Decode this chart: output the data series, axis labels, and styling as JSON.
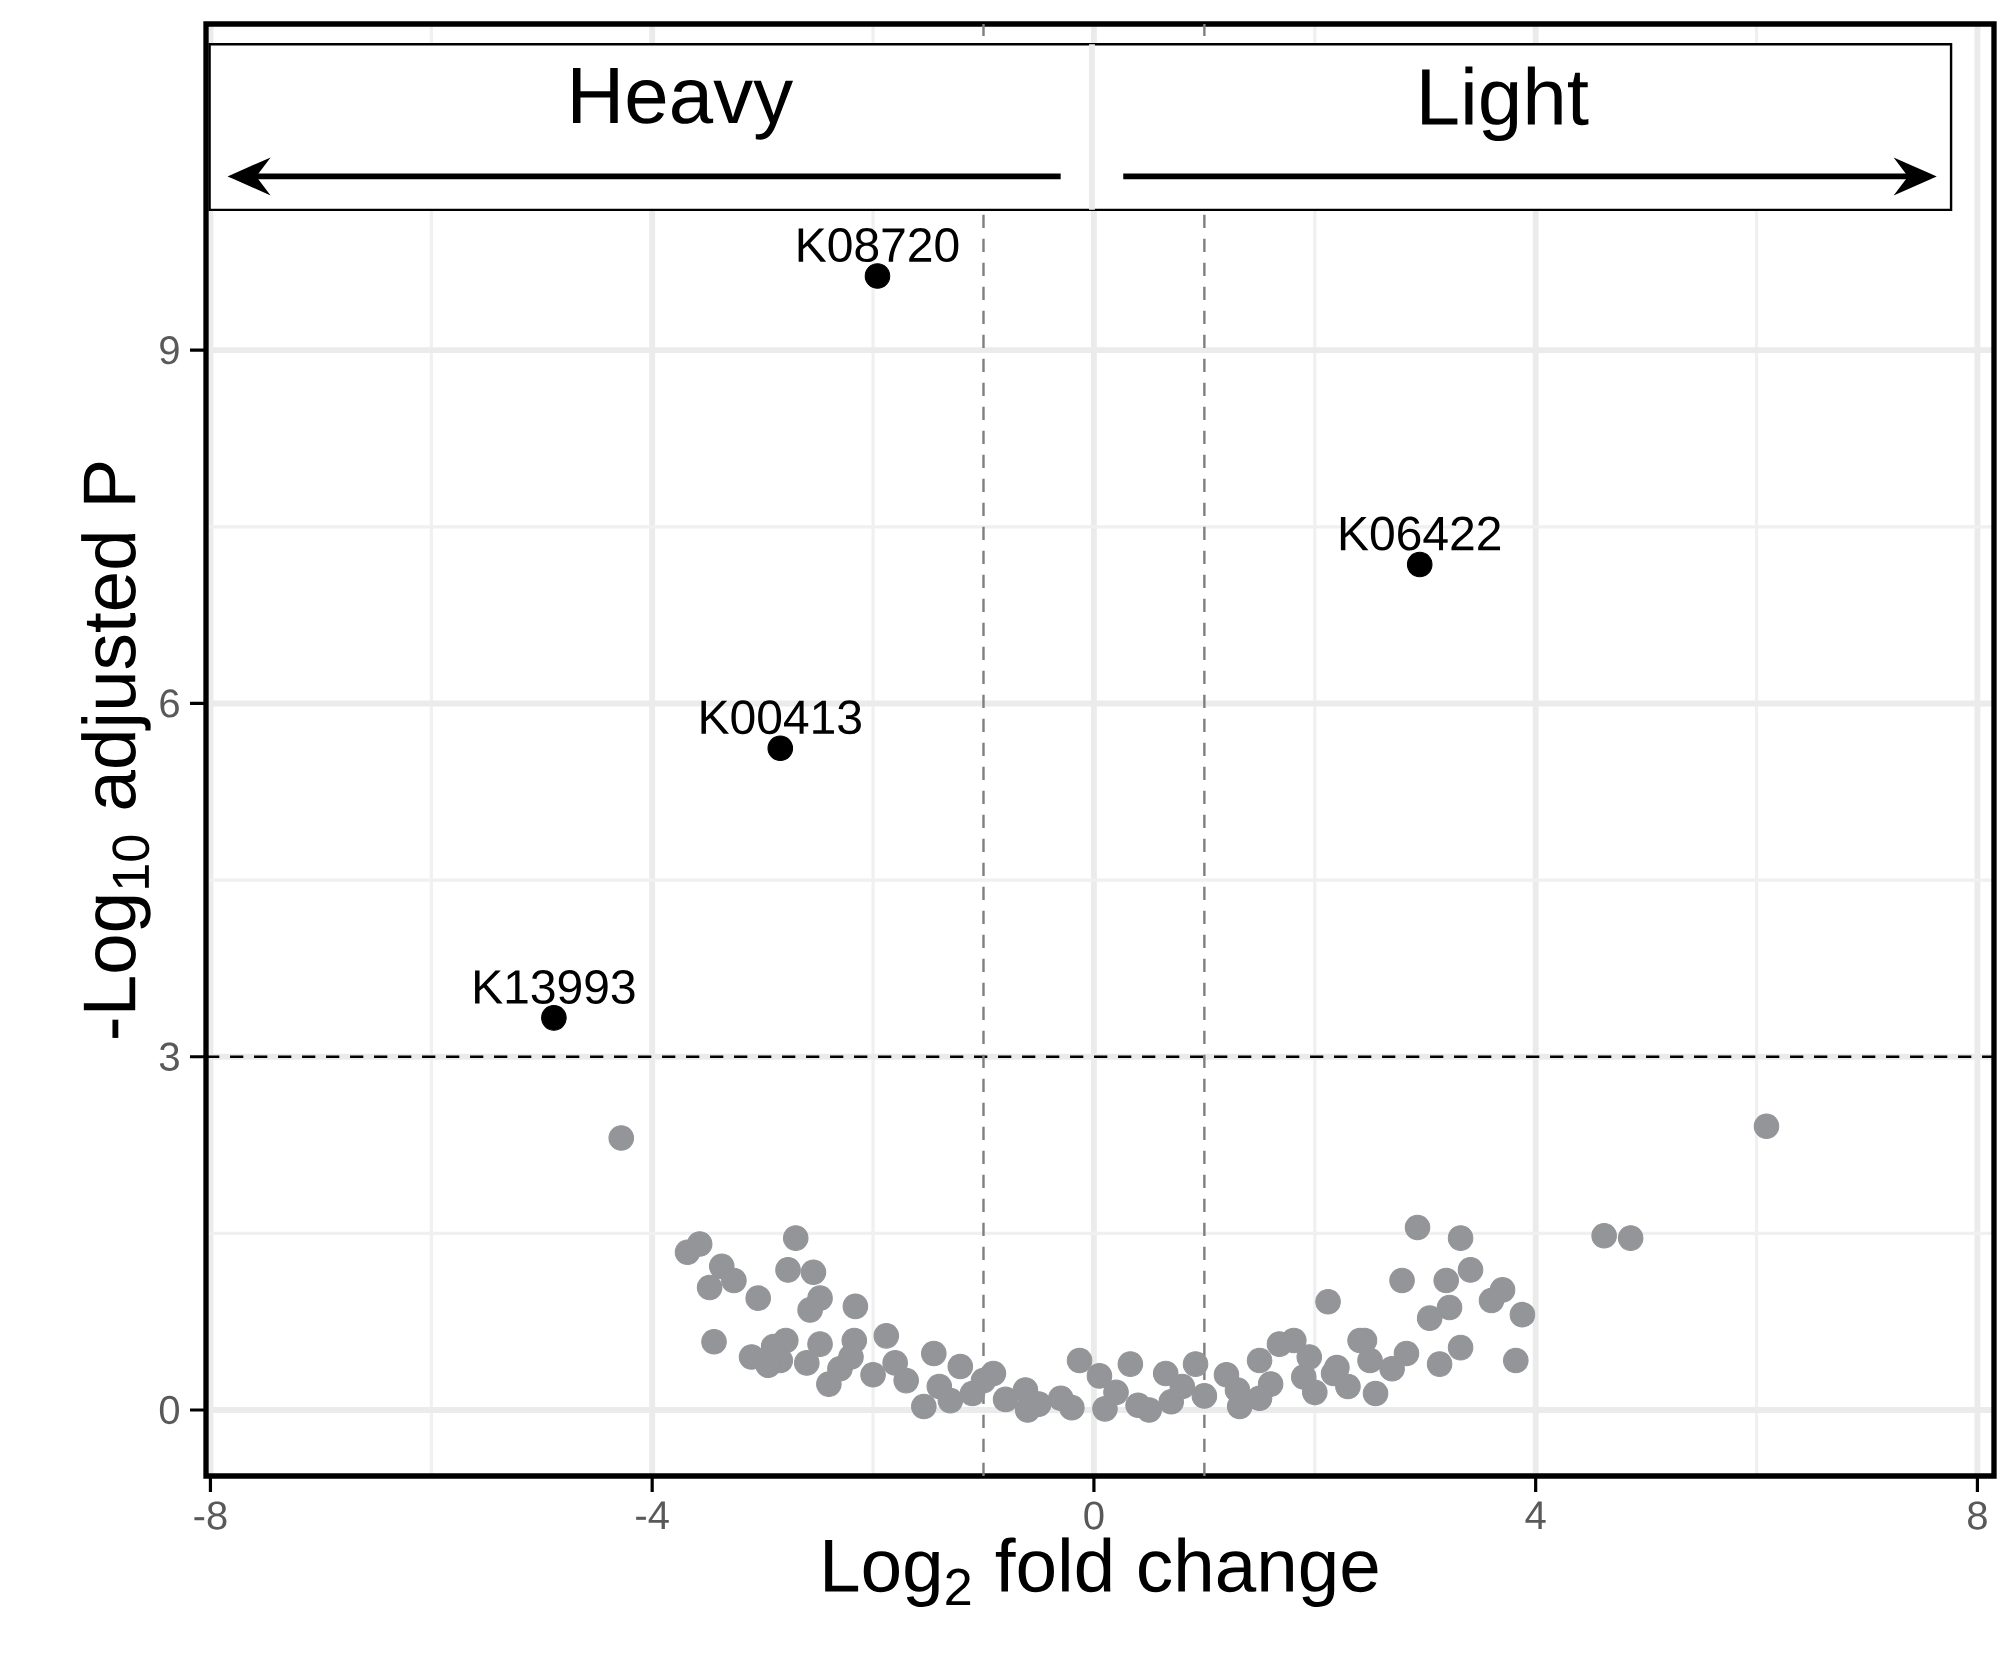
{
  "chart_data": {
    "type": "scatter",
    "xlabel": "Log$_{2}$ fold change",
    "ylabel": "-Log$_{10}$ adjusted P",
    "xlim": [
      -8.04,
      8.15
    ],
    "ylim": [
      -0.56,
      11.77
    ],
    "xticks": [
      -8,
      -4,
      0,
      4,
      8
    ],
    "yticks": [
      0,
      3,
      6,
      9
    ],
    "grid": true,
    "marker": "circle",
    "series": [
      {
        "color": "#939598",
        "x": [
          -4.28,
          6.09,
          4.62,
          4.86,
          2.93,
          3.32,
          3.41,
          2.79,
          3.19,
          3.7,
          3.6,
          3.88,
          3.22,
          3.04,
          2.12,
          3.82,
          3.32,
          3.13,
          2.83,
          2.55,
          2.45,
          -3.68,
          -3.57,
          -2.7,
          -3.37,
          -3.26,
          -2.77,
          -2.54,
          -3.48,
          -3.04,
          -2.48,
          -2.57,
          -2.16,
          -3.44,
          -2.9,
          -2.79,
          -2.84,
          -2.48,
          -2.17,
          -1.88,
          -1.45,
          -1.54,
          -1.21,
          -0.91,
          -0.62,
          -0.13,
          0.33,
          0.05,
          0.65,
          0.92,
          1.5,
          1.81,
          1.68,
          2.17,
          2.41,
          1.32,
          -2.6,
          -2.3,
          -2.0,
          -1.7,
          -1.4,
          -1.1,
          -0.8,
          -0.5,
          -0.2,
          0.1,
          0.4,
          0.7,
          1.0,
          1.3,
          1.6,
          1.9,
          2.2,
          2.5,
          2.7,
          -3.1,
          -2.95,
          -2.2,
          -1.8,
          -1.0,
          -0.3,
          0.2,
          0.8,
          1.2,
          1.95,
          2.3,
          -1.3,
          1.5,
          0.5,
          -0.6,
          2.0,
          -2.4
        ],
        "values": [
          2.31,
          2.41,
          1.48,
          1.46,
          1.55,
          1.46,
          1.19,
          1.1,
          1.1,
          1.02,
          0.93,
          0.81,
          0.87,
          0.78,
          0.92,
          0.42,
          0.53,
          0.39,
          0.48,
          0.14,
          0.59,
          1.34,
          1.41,
          1.46,
          1.22,
          1.1,
          1.19,
          1.17,
          1.04,
          0.95,
          0.95,
          0.85,
          0.88,
          0.58,
          0.54,
          0.59,
          0.42,
          0.56,
          0.59,
          0.63,
          0.48,
          0.03,
          0.37,
          0.31,
          0.17,
          0.42,
          0.39,
          0.29,
          0.31,
          0.39,
          0.42,
          0.59,
          0.56,
          0.31,
          0.59,
          0.03,
          0.4,
          0.35,
          0.3,
          0.25,
          0.2,
          0.14,
          0.09,
          0.05,
          0.02,
          0.01,
          0.04,
          0.07,
          0.12,
          0.17,
          0.22,
          0.28,
          0.36,
          0.42,
          0.35,
          0.45,
          0.38,
          0.45,
          0.4,
          0.25,
          0.1,
          0.15,
          0.2,
          0.3,
          0.45,
          0.2,
          0.08,
          0.1,
          0.0,
          0.0,
          0.15,
          0.22
        ]
      },
      {
        "color": "#000000",
        "x": [
          -1.96,
          2.95,
          -2.84,
          -4.89
        ],
        "values": [
          9.63,
          7.18,
          5.62,
          3.33
        ]
      }
    ],
    "ref_lines": [
      {
        "axis": "y",
        "value": 3,
        "color": "#000000",
        "line_style": "dashed"
      },
      {
        "axis": "x",
        "value": -1,
        "color": "#7f7f7f",
        "line_style": "dashed"
      },
      {
        "axis": "x",
        "value": 1,
        "color": "#7f7f7f",
        "line_style": "dashed"
      }
    ],
    "annotations": [
      "Heavy",
      "Light",
      {
        "text": "K08720",
        "x": -1.96,
        "y": 9.63
      },
      {
        "text": "K06422",
        "x": 2.95,
        "y": 7.18
      },
      {
        "text": "K00413",
        "x": -2.84,
        "y": 5.62
      },
      {
        "text": "K13993",
        "x": -4.89,
        "y": 3.33
      }
    ]
  }
}
